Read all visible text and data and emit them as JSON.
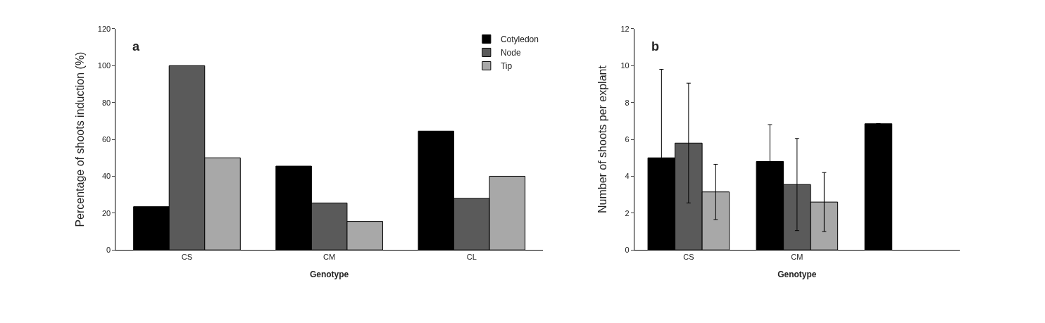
{
  "chart_data": [
    {
      "type": "bar",
      "title": "a",
      "xlabel": "Genotype",
      "ylabel": "Percentage of shoots induction (%)",
      "categories": [
        "CS",
        "CM",
        "CL"
      ],
      "series": [
        {
          "name": "Cotyledon",
          "color": "#000000",
          "values": [
            23.5,
            45.5,
            64.5
          ]
        },
        {
          "name": "Node",
          "color": "#5a5a5a",
          "values": [
            100,
            25.5,
            28
          ]
        },
        {
          "name": "Tip",
          "color": "#a8a8a8",
          "values": [
            50,
            15.5,
            40
          ]
        }
      ],
      "ylim": [
        0,
        120
      ],
      "yticks": [
        0,
        20,
        40,
        60,
        80,
        100,
        120
      ],
      "legend": "top right"
    },
    {
      "type": "bar",
      "title": "b",
      "xlabel": "Genotype",
      "ylabel": "Number of shoots per explant",
      "categories": [
        "CS",
        "CM",
        null
      ],
      "series": [
        {
          "color": "#000000",
          "values": [
            5.0,
            4.8,
            6.85
          ],
          "errors": [
            4.8,
            2.0,
            null
          ]
        },
        {
          "color": "#5a5a5a",
          "values": [
            5.8,
            3.55,
            null
          ],
          "errors": [
            3.25,
            2.5,
            null
          ]
        },
        {
          "color": "#a8a8a8",
          "values": [
            3.15,
            2.6,
            null
          ],
          "errors": [
            1.5,
            1.6,
            null
          ]
        }
      ],
      "ylim": [
        0,
        12
      ],
      "yticks": [
        0,
        2,
        4,
        6,
        8,
        10,
        12
      ],
      "legend": false
    }
  ]
}
